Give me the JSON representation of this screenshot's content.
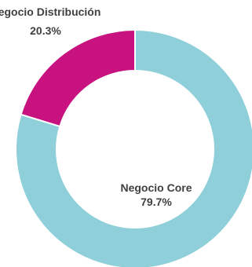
{
  "chart_data": {
    "type": "pie",
    "variant": "donut",
    "title": "",
    "legend": "none",
    "slices": [
      {
        "label": "Negocio Core",
        "value": 79.7,
        "percent_label": "79.7%",
        "color": "#8ecfda"
      },
      {
        "label": "Negocio Distribución",
        "value": 20.3,
        "percent_label": "20.3%",
        "color": "#c7127f"
      }
    ]
  }
}
